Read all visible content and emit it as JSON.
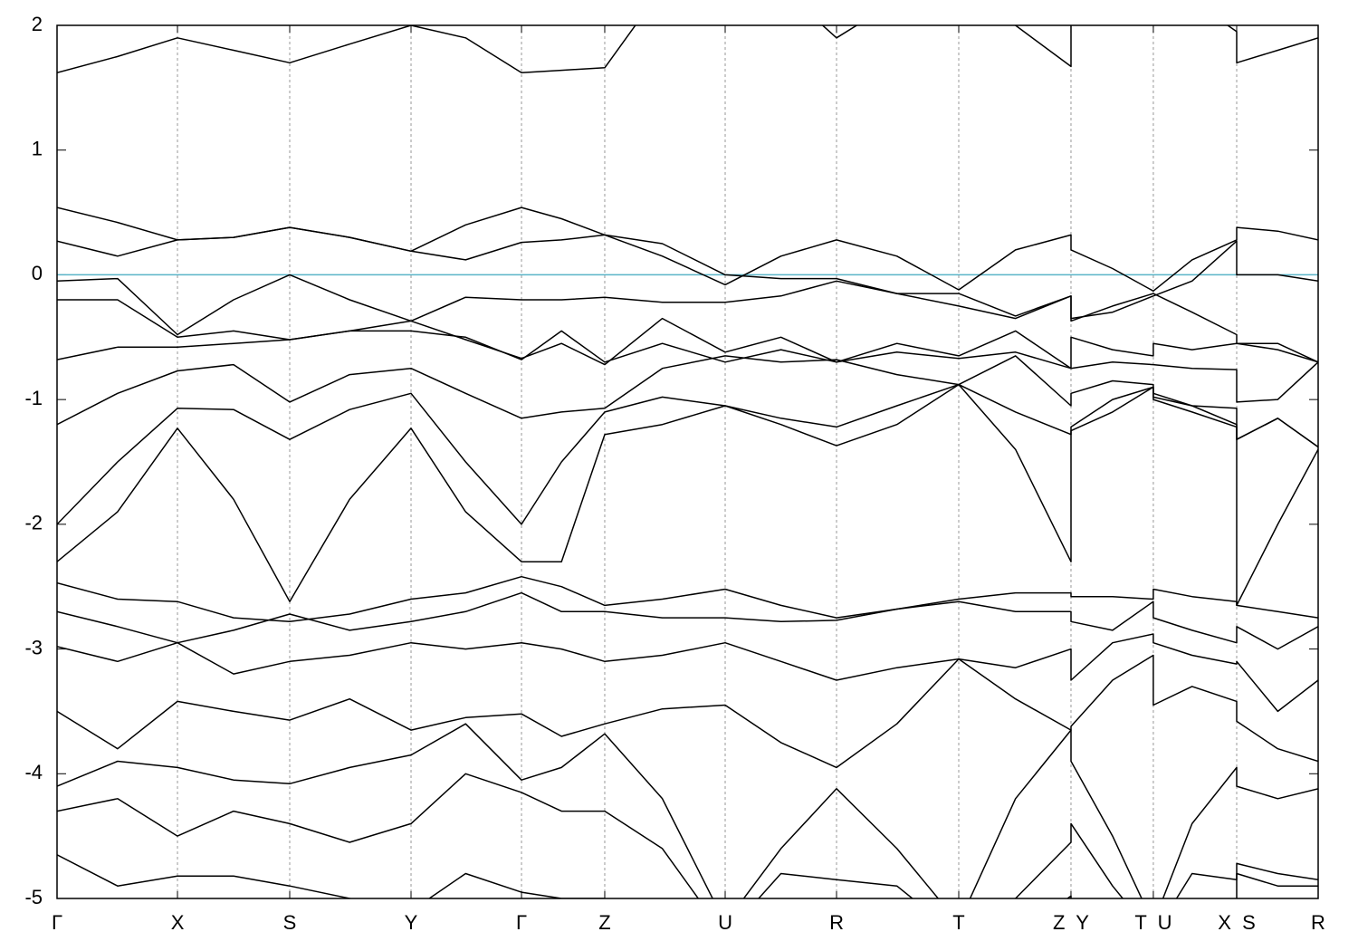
{
  "chart_data": {
    "type": "line",
    "color": "#000000",
    "grid": true,
    "grid_color": "#999999",
    "fermi_level": 0,
    "fermi_color": "#5ab4c8",
    "xlim": [
      0,
      1
    ],
    "xticks": [
      {
        "value": 0,
        "label": "Γ"
      },
      {
        "value": 0.0955,
        "label": "X"
      },
      {
        "value": 0.1845,
        "label": "S"
      },
      {
        "value": 0.2807,
        "label": "Y"
      },
      {
        "value": 0.3683,
        "label": "Γ"
      },
      {
        "value": 0.4343,
        "label": "Z"
      },
      {
        "value": 0.5298,
        "label": "U"
      },
      {
        "value": 0.6181,
        "label": "R"
      },
      {
        "value": 0.715,
        "label": "T"
      },
      {
        "value": 0.804,
        "label": "Z  Y"
      },
      {
        "value": 0.8693,
        "label": "T  U"
      },
      {
        "value": 0.9354,
        "label": "X  S"
      },
      {
        "value": 1,
        "label": "R"
      }
    ],
    "ylim": [
      -5,
      2
    ],
    "yticks": [
      -5,
      -4,
      -3,
      -2,
      -1,
      0,
      1,
      2
    ],
    "x": [
      0,
      0.048,
      0.0955,
      0.14,
      0.1845,
      0.232,
      0.2807,
      0.324,
      0.3683,
      0.4,
      0.4343,
      0.48,
      0.5298,
      0.574,
      0.6181,
      0.666,
      0.715,
      0.76,
      0.804,
      0.804,
      0.837,
      0.8693,
      0.8693,
      0.9,
      0.9354,
      0.9354,
      0.968,
      1
    ],
    "series": [
      {
        "values": [
          1.62,
          1.75,
          1.9,
          1.8,
          1.7,
          1.85,
          2.0,
          1.9,
          1.62,
          1.64,
          1.66,
          2.3,
          2.6,
          2.3,
          1.9,
          2.2,
          2.4,
          2.0,
          1.67,
          2.1,
          2.2,
          2.3,
          2.3,
          2.2,
          1.95,
          1.7,
          1.8,
          1.9
        ]
      },
      {
        "values": [
          0.54,
          0.42,
          0.28,
          0.3,
          0.38,
          0.3,
          0.19,
          0.4,
          0.54,
          0.45,
          0.32,
          0.15,
          -0.08,
          0.15,
          0.28,
          0.15,
          -0.12,
          0.2,
          0.32,
          0.2,
          0.05,
          -0.13,
          -0.13,
          0.12,
          0.28,
          0.38,
          0.35,
          0.28
        ]
      },
      {
        "values": [
          0.27,
          0.15,
          0.28,
          0.3,
          0.38,
          0.3,
          0.19,
          0.12,
          0.26,
          0.28,
          0.32,
          0.25,
          0.0,
          -0.03,
          -0.03,
          -0.15,
          -0.25,
          -0.35,
          -0.17,
          -0.35,
          -0.3,
          -0.17,
          -0.17,
          -0.05,
          0.27,
          0.0,
          0.0,
          -0.05
        ]
      },
      {
        "values": [
          -0.05,
          -0.03,
          -0.48,
          -0.2,
          0.0,
          -0.2,
          -0.37,
          -0.18,
          -0.2,
          -0.2,
          -0.18,
          -0.22,
          -0.22,
          -0.17,
          -0.05,
          -0.15,
          -0.15,
          -0.33,
          -0.17,
          -0.37,
          -0.25,
          -0.15,
          -0.15,
          -0.3,
          -0.48,
          -0.55,
          -0.55,
          -0.7
        ]
      },
      {
        "values": [
          -0.2,
          -0.2,
          -0.5,
          -0.45,
          -0.52,
          -0.45,
          -0.37,
          -0.52,
          -0.67,
          -0.55,
          -0.72,
          -0.35,
          -0.62,
          -0.5,
          -0.7,
          -0.55,
          -0.65,
          -0.45,
          -0.75,
          -0.5,
          -0.6,
          -0.65,
          -0.55,
          -0.6,
          -0.55,
          -0.55,
          -0.6,
          -0.7
        ]
      },
      {
        "values": [
          -0.68,
          -0.58,
          -0.58,
          -0.55,
          -0.52,
          -0.45,
          -0.45,
          -0.5,
          -0.68,
          -0.45,
          -0.7,
          -0.55,
          -0.7,
          -0.6,
          -0.7,
          -0.62,
          -0.67,
          -0.62,
          -0.75,
          -0.75,
          -0.7,
          -0.72,
          -0.72,
          -0.75,
          -0.76,
          -1.02,
          -1.0,
          -0.7
        ]
      },
      {
        "values": [
          -1.2,
          -0.95,
          -0.77,
          -0.72,
          -1.02,
          -0.8,
          -0.75,
          -0.95,
          -1.15,
          -1.1,
          -1.07,
          -0.75,
          -0.65,
          -0.7,
          -0.68,
          -0.8,
          -0.88,
          -0.65,
          -1.05,
          -0.95,
          -0.85,
          -0.88,
          -0.95,
          -1.05,
          -1.07,
          -1.32,
          -1.15,
          -1.38
        ]
      },
      {
        "values": [
          -2.0,
          -1.5,
          -1.07,
          -1.08,
          -1.32,
          -1.08,
          -0.95,
          -1.5,
          -2.0,
          -1.5,
          -1.1,
          -0.98,
          -1.05,
          -1.2,
          -1.37,
          -1.2,
          -0.88,
          -1.4,
          -2.3,
          -1.25,
          -1.1,
          -0.9,
          -0.98,
          -1.05,
          -1.2,
          -2.65,
          -2.0,
          -1.4
        ]
      },
      {
        "values": [
          -2.3,
          -1.9,
          -1.23,
          -1.8,
          -2.62,
          -1.8,
          -1.23,
          -1.9,
          -2.3,
          -2.3,
          -1.28,
          -1.2,
          -1.05,
          -1.15,
          -1.22,
          -1.05,
          -0.88,
          -1.1,
          -1.28,
          -1.22,
          -1.0,
          -0.9,
          -1.0,
          -1.1,
          -1.22,
          -1.32,
          -1.15,
          -1.38
        ]
      },
      {
        "values": [
          -2.47,
          -2.6,
          -2.62,
          -2.75,
          -2.78,
          -2.72,
          -2.6,
          -2.55,
          -2.42,
          -2.5,
          -2.65,
          -2.6,
          -2.52,
          -2.65,
          -2.75,
          -2.68,
          -2.6,
          -2.55,
          -2.55,
          -2.58,
          -2.58,
          -2.6,
          -2.52,
          -2.58,
          -2.62,
          -2.65,
          -2.7,
          -2.75
        ]
      },
      {
        "values": [
          -2.7,
          -2.82,
          -2.95,
          -2.85,
          -2.72,
          -2.85,
          -2.78,
          -2.7,
          -2.55,
          -2.7,
          -2.7,
          -2.75,
          -2.75,
          -2.78,
          -2.77,
          -2.68,
          -2.62,
          -2.7,
          -2.7,
          -2.78,
          -2.85,
          -2.62,
          -2.75,
          -2.85,
          -2.95,
          -2.82,
          -3.0,
          -2.82
        ]
      },
      {
        "values": [
          -2.98,
          -3.1,
          -2.95,
          -3.2,
          -3.1,
          -3.05,
          -2.95,
          -3.0,
          -2.95,
          -3.0,
          -3.1,
          -3.05,
          -2.95,
          -3.1,
          -3.25,
          -3.15,
          -3.08,
          -3.15,
          -3.0,
          -3.25,
          -2.95,
          -2.88,
          -2.95,
          -3.05,
          -3.12,
          -3.1,
          -3.5,
          -3.25
        ]
      },
      {
        "values": [
          -3.5,
          -3.8,
          -3.42,
          -3.5,
          -3.57,
          -3.4,
          -3.65,
          -3.55,
          -3.52,
          -3.7,
          -3.6,
          -3.48,
          -3.45,
          -3.75,
          -3.95,
          -3.6,
          -3.08,
          -3.4,
          -3.65,
          -3.62,
          -3.25,
          -3.05,
          -3.45,
          -3.3,
          -3.42,
          -3.58,
          -3.8,
          -3.9
        ]
      },
      {
        "values": [
          -4.1,
          -3.9,
          -3.95,
          -4.05,
          -4.08,
          -3.95,
          -3.85,
          -3.6,
          -4.05,
          -3.95,
          -3.68,
          -4.2,
          -5.2,
          -4.6,
          -4.12,
          -4.6,
          -5.2,
          -4.2,
          -3.65,
          -3.9,
          -4.5,
          -5.2,
          -5.2,
          -4.4,
          -3.95,
          -4.1,
          -4.2,
          -4.12
        ]
      },
      {
        "values": [
          -4.3,
          -4.2,
          -4.5,
          -4.3,
          -4.4,
          -4.55,
          -4.4,
          -4.0,
          -4.15,
          -4.3,
          -4.3,
          -4.6,
          -5.3,
          -4.8,
          -4.85,
          -4.9,
          -5.3,
          -5.0,
          -4.55,
          -4.4,
          -4.9,
          -5.3,
          -5.3,
          -4.8,
          -4.85,
          -4.72,
          -4.8,
          -4.85
        ]
      },
      {
        "values": [
          -4.65,
          -4.9,
          -4.82,
          -4.82,
          -4.9,
          -5.0,
          -5.1,
          -4.8,
          -4.95,
          -5.0,
          -5.0,
          -5.3,
          -5.5,
          -5.3,
          -5.1,
          -5.3,
          -5.5,
          -5.3,
          -4.98,
          -5.0,
          -5.3,
          -5.5,
          -5.5,
          -5.2,
          -5.0,
          -4.8,
          -4.9,
          -4.9
        ]
      }
    ]
  }
}
